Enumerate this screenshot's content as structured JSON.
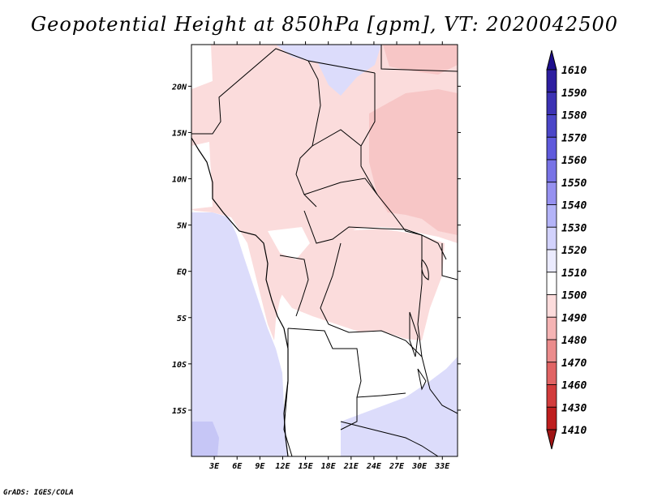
{
  "title": "Geopotential Height at 850hPa [gpm], VT: 2020042500",
  "credit": "GrADS: IGES/COLA",
  "map": {
    "lat_ticks": [
      "20N",
      "15N",
      "10N",
      "5N",
      "EQ",
      "5S",
      "10S",
      "15S"
    ],
    "lon_ticks": [
      "3E",
      "6E",
      "9E",
      "12E",
      "15E",
      "18E",
      "21E",
      "24E",
      "27E",
      "30E",
      "33E"
    ],
    "lon_range": [
      0,
      35
    ],
    "lat_range": [
      -20,
      24.5
    ],
    "field_regions": [
      {
        "name": "north-africa-pink",
        "level": "1500",
        "color": "#fbdcdc"
      },
      {
        "name": "sudan-deeper-pink",
        "level": "1490",
        "color": "#f7c6c6"
      },
      {
        "name": "congo-basin-pink",
        "level": "1500",
        "color": "#fbdcdc"
      },
      {
        "name": "atlantic-lavender",
        "level": "1520",
        "color": "#dcdcfb"
      },
      {
        "name": "southwest-violet",
        "level": "1530",
        "color": "#c6c6f6"
      },
      {
        "name": "southeast-lavender",
        "level": "1520",
        "color": "#dcdcfb"
      },
      {
        "name": "libya-lavender",
        "level": "1520",
        "color": "#dcdcfb"
      },
      {
        "name": "egypt-pink",
        "level": "1490",
        "color": "#f7c6c6"
      }
    ]
  },
  "colorbar": {
    "levels": [
      "1610",
      "1590",
      "1580",
      "1570",
      "1560",
      "1550",
      "1540",
      "1530",
      "1520",
      "1510",
      "1500",
      "1490",
      "1480",
      "1470",
      "1460",
      "1430",
      "1410"
    ],
    "colors": [
      "#1e0f8c",
      "#2d1ea0",
      "#3c32b4",
      "#4b46c8",
      "#5f5adc",
      "#7873e6",
      "#9691f0",
      "#b4b4f8",
      "#d2d2fc",
      "#ebebfe",
      "#ffffff",
      "#fcdcdc",
      "#f5b4b4",
      "#eb8c8c",
      "#e16464",
      "#d23c3c",
      "#be1e1e",
      "#a01414"
    ]
  }
}
